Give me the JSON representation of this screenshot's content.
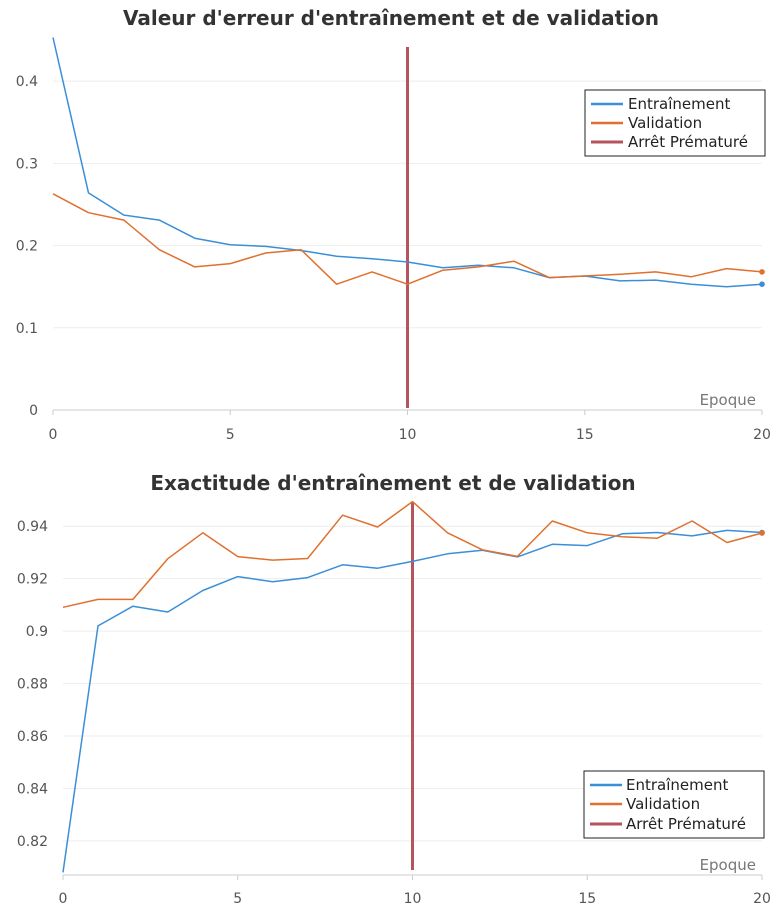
{
  "chart_data": [
    {
      "type": "line",
      "title": "Valeur d'erreur d'entraînement et de validation",
      "xlabel": "Epoque",
      "ylabel": "",
      "xlim": [
        0,
        20
      ],
      "ylim": [
        0,
        0.45
      ],
      "x_ticks": [
        0,
        5,
        10,
        15,
        20
      ],
      "y_ticks": [
        0,
        0.1,
        0.2,
        0.3,
        0.4
      ],
      "y_tick_labels": [
        "0",
        "0.1",
        "0.2",
        "0.3",
        "0.4"
      ],
      "grid": true,
      "legend_position": "top-right",
      "x": [
        0,
        1,
        2,
        3,
        4,
        5,
        6,
        7,
        8,
        9,
        10,
        11,
        12,
        13,
        14,
        15,
        16,
        17,
        18,
        19,
        20
      ],
      "series": [
        {
          "name": "Entraînement",
          "color": "#3a8fd8",
          "values": [
            0.453,
            0.264,
            0.237,
            0.231,
            0.209,
            0.201,
            0.199,
            0.194,
            0.187,
            0.184,
            0.18,
            0.173,
            0.176,
            0.173,
            0.161,
            0.163,
            0.157,
            0.158,
            0.153,
            0.15,
            0.153
          ]
        },
        {
          "name": "Validation",
          "color": "#e0702e",
          "values": [
            0.263,
            0.24,
            0.231,
            0.195,
            0.174,
            0.178,
            0.191,
            0.195,
            0.153,
            0.168,
            0.153,
            0.17,
            0.174,
            0.181,
            0.161,
            0.163,
            0.165,
            0.168,
            0.162,
            0.172,
            0.168
          ]
        }
      ],
      "vline": {
        "name": "Arrêt Prématuré",
        "x": 10,
        "color": "#b5545c"
      }
    },
    {
      "type": "line",
      "title": "Exactitude d'entraînement et de validation",
      "xlabel": "Epoque",
      "ylabel": "",
      "xlim": [
        0,
        20
      ],
      "ylim": [
        0.807,
        0.95
      ],
      "x_ticks": [
        0,
        5,
        10,
        15,
        20
      ],
      "y_ticks": [
        0.82,
        0.84,
        0.86,
        0.88,
        0.9,
        0.92,
        0.94
      ],
      "y_tick_labels": [
        "0.82",
        "0.84",
        "0.86",
        "0.88",
        "0.9",
        "0.92",
        "0.94"
      ],
      "grid": true,
      "legend_position": "bottom-right",
      "x": [
        0,
        1,
        2,
        3,
        4,
        5,
        6,
        7,
        8,
        9,
        10,
        11,
        12,
        13,
        14,
        15,
        16,
        17,
        18,
        19,
        20
      ],
      "series": [
        {
          "name": "Entraînement",
          "color": "#3a8fd8",
          "values": [
            0.808,
            0.902,
            0.9095,
            0.9073,
            0.9155,
            0.9208,
            0.9188,
            0.9204,
            0.9253,
            0.924,
            0.9266,
            0.9295,
            0.9308,
            0.9283,
            0.9331,
            0.9326,
            0.9371,
            0.9376,
            0.9363,
            0.9384,
            0.9376
          ]
        },
        {
          "name": "Validation",
          "color": "#e0702e",
          "values": [
            0.9091,
            0.9121,
            0.9121,
            0.9276,
            0.9375,
            0.9284,
            0.9271,
            0.9277,
            0.9442,
            0.9397,
            0.9494,
            0.9375,
            0.931,
            0.9285,
            0.942,
            0.9375,
            0.936,
            0.9354,
            0.942,
            0.9338,
            0.9374
          ]
        }
      ],
      "vline": {
        "name": "Arrêt Prématuré",
        "x": 10,
        "color": "#b5545c"
      }
    }
  ]
}
